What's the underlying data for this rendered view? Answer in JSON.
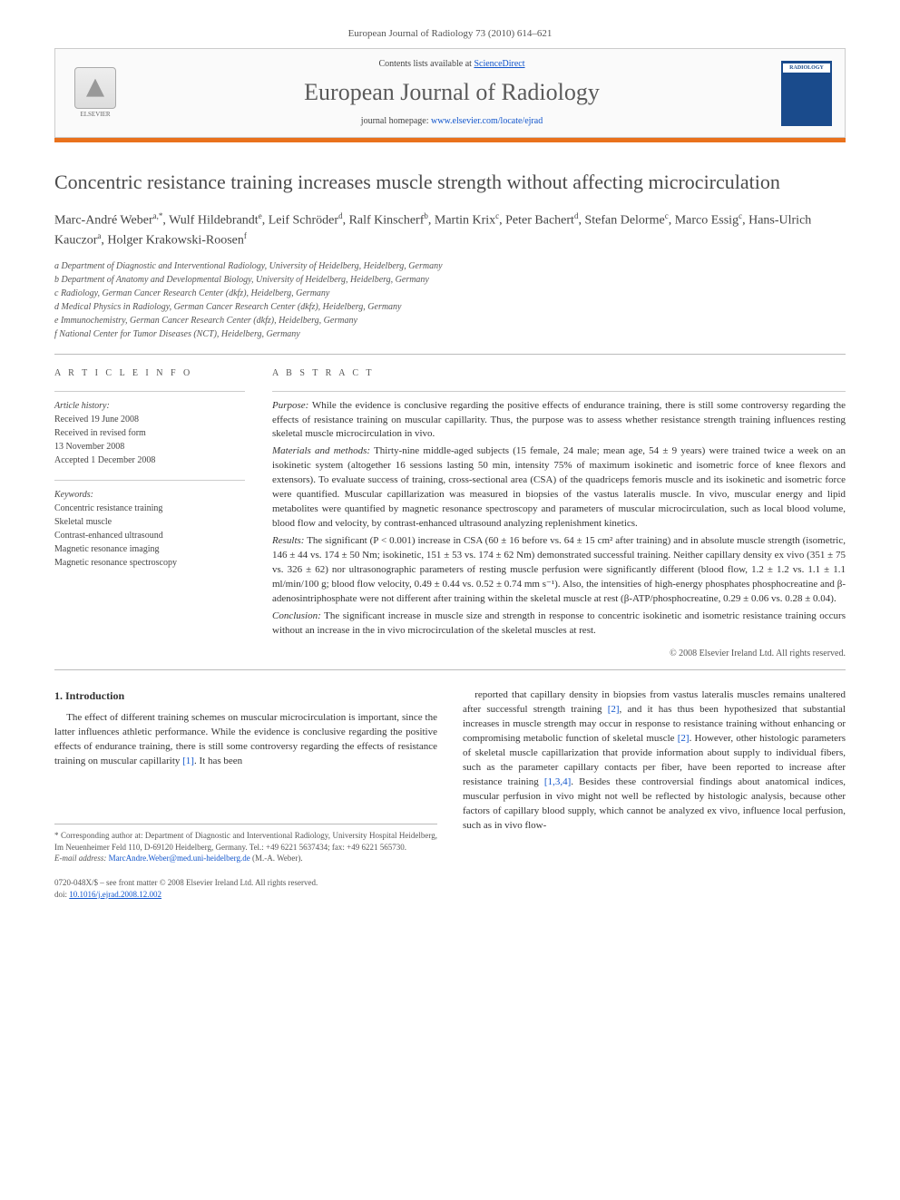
{
  "header": {
    "citation": "European Journal of Radiology 73 (2010) 614–621",
    "contents_prefix": "Contents lists available at ",
    "contents_link": "ScienceDirect",
    "journal": "European Journal of Radiology",
    "homepage_prefix": "journal homepage: ",
    "homepage_url": "www.elsevier.com/locate/ejrad",
    "publisher_label": "ELSEVIER",
    "thumb_title": "RADIOLOGY"
  },
  "article": {
    "title": "Concentric resistance training increases muscle strength without affecting microcirculation",
    "authors_html": "Marc-André Weber<sup>a,*</sup>, Wulf Hildebrandt<sup>e</sup>, Leif Schröder<sup>d</sup>, Ralf Kinscherf<sup>b</sup>, Martin Krix<sup>c</sup>, Peter Bachert<sup>d</sup>, Stefan Delorme<sup>c</sup>, Marco Essig<sup>c</sup>, Hans-Ulrich Kauczor<sup>a</sup>, Holger Krakowski-Roosen<sup>f</sup>",
    "affiliations": [
      "a Department of Diagnostic and Interventional Radiology, University of Heidelberg, Heidelberg, Germany",
      "b Department of Anatomy and Developmental Biology, University of Heidelberg, Heidelberg, Germany",
      "c Radiology, German Cancer Research Center (dkfz), Heidelberg, Germany",
      "d Medical Physics in Radiology, German Cancer Research Center (dkfz), Heidelberg, Germany",
      "e Immunochemistry, German Cancer Research Center (dkfz), Heidelberg, Germany",
      "f National Center for Tumor Diseases (NCT), Heidelberg, Germany"
    ]
  },
  "info": {
    "label": "A R T I C L E   I N F O",
    "history_hdr": "Article history:",
    "history": [
      "Received 19 June 2008",
      "Received in revised form",
      "13 November 2008",
      "Accepted 1 December 2008"
    ],
    "keywords_hdr": "Keywords:",
    "keywords": [
      "Concentric resistance training",
      "Skeletal muscle",
      "Contrast-enhanced ultrasound",
      "Magnetic resonance imaging",
      "Magnetic resonance spectroscopy"
    ]
  },
  "abstract": {
    "label": "A B S T R A C T",
    "purpose": "Purpose: While the evidence is conclusive regarding the positive effects of endurance training, there is still some controversy regarding the effects of resistance training on muscular capillarity. Thus, the purpose was to assess whether resistance strength training influences resting skeletal muscle microcirculation in vivo.",
    "methods": "Materials and methods: Thirty-nine middle-aged subjects (15 female, 24 male; mean age, 54 ± 9 years) were trained twice a week on an isokinetic system (altogether 16 sessions lasting 50 min, intensity 75% of maximum isokinetic and isometric force of knee flexors and extensors). To evaluate success of training, cross-sectional area (CSA) of the quadriceps femoris muscle and its isokinetic and isometric force were quantified. Muscular capillarization was measured in biopsies of the vastus lateralis muscle. In vivo, muscular energy and lipid metabolites were quantified by magnetic resonance spectroscopy and parameters of muscular microcirculation, such as local blood volume, blood flow and velocity, by contrast-enhanced ultrasound analyzing replenishment kinetics.",
    "results": "Results: The significant (P < 0.001) increase in CSA (60 ± 16 before vs. 64 ± 15 cm² after training) and in absolute muscle strength (isometric, 146 ± 44 vs. 174 ± 50 Nm; isokinetic, 151 ± 53 vs. 174 ± 62 Nm) demonstrated successful training. Neither capillary density ex vivo (351 ± 75 vs. 326 ± 62) nor ultrasonographic parameters of resting muscle perfusion were significantly different (blood flow, 1.2 ± 1.2 vs. 1.1 ± 1.1 ml/min/100 g; blood flow velocity, 0.49 ± 0.44 vs. 0.52 ± 0.74 mm s⁻¹). Also, the intensities of high-energy phosphates phosphocreatine and β-adenosintriphosphate were not different after training within the skeletal muscle at rest (β-ATP/phosphocreatine, 0.29 ± 0.06 vs. 0.28 ± 0.04).",
    "conclusion": "Conclusion: The significant increase in muscle size and strength in response to concentric isokinetic and isometric resistance training occurs without an increase in the in vivo microcirculation of the skeletal muscles at rest.",
    "copyright": "© 2008 Elsevier Ireland Ltd. All rights reserved."
  },
  "body": {
    "intro_heading": "1.  Introduction",
    "intro_p1": "The effect of different training schemes on muscular microcirculation is important, since the latter influences athletic performance. While the evidence is conclusive regarding the positive effects of endurance training, there is still some controversy regarding the effects of resistance training on muscular capillarity [1]. It has been",
    "intro_p2": "reported that capillary density in biopsies from vastus lateralis muscles remains unaltered after successful strength training [2], and it has thus been hypothesized that substantial increases in muscle strength may occur in response to resistance training without enhancing or compromising metabolic function of skeletal muscle [2]. However, other histologic parameters of skeletal muscle capillarization that provide information about supply to individual fibers, such as the parameter capillary contacts per fiber, have been reported to increase after resistance training [1,3,4]. Besides these controversial findings about anatomical indices, muscular perfusion in vivo might not well be reflected by histologic analysis, because other factors of capillary blood supply, which cannot be analyzed ex vivo, influence local perfusion, such as in vivo flow-"
  },
  "footnote": {
    "corr": "* Corresponding author at: Department of Diagnostic and Interventional Radiology, University Hospital Heidelberg, Im Neuenheimer Feld 110, D-69120 Heidelberg, Germany. Tel.: +49 6221 5637434; fax: +49 6221 565730.",
    "email_label": "E-mail address: ",
    "email": "MarcAndre.Weber@med.uni-heidelberg.de",
    "email_suffix": " (M.-A. Weber)."
  },
  "footer": {
    "left1": "0720-048X/$ – see front matter © 2008 Elsevier Ireland Ltd. All rights reserved.",
    "left2_prefix": "doi:",
    "left2": "10.1016/j.ejrad.2008.12.002"
  },
  "colors": {
    "accent_orange": "#e9711c",
    "link": "#1155cc",
    "text": "#333333",
    "muted": "#555555",
    "border": "#bbbbbb",
    "thumb_bg": "#1a4b8c"
  }
}
